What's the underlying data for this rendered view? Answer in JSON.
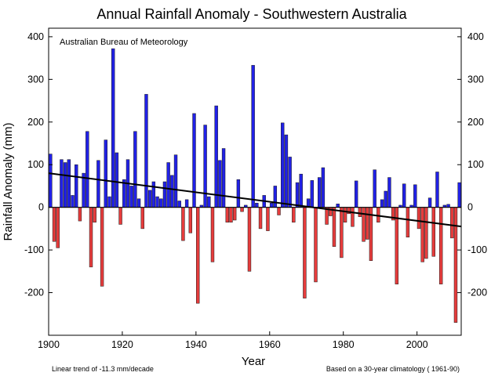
{
  "chart_data": {
    "type": "bar",
    "title": "Annual Rainfall Anomaly - Southwestern Australia",
    "source_label": "Australian Bureau of Meteorology",
    "xlabel": "Year",
    "ylabel": "Rainfall Anomaly (mm)",
    "xlim": [
      1900,
      2012
    ],
    "ylim": [
      -300,
      420
    ],
    "x_ticks": [
      1900,
      1920,
      1940,
      1960,
      1980,
      2000
    ],
    "y_ticks": [
      -200,
      -100,
      0,
      100,
      200,
      300,
      400
    ],
    "years_start": 1900,
    "values": [
      125,
      -80,
      -95,
      112,
      105,
      112,
      28,
      100,
      -32,
      80,
      178,
      -140,
      -35,
      110,
      -185,
      158,
      25,
      372,
      128,
      -40,
      65,
      112,
      50,
      178,
      20,
      -50,
      265,
      40,
      60,
      25,
      20,
      60,
      105,
      75,
      123,
      15,
      -78,
      18,
      -60,
      220,
      -225,
      5,
      193,
      25,
      -128,
      238,
      110,
      138,
      -35,
      -35,
      -30,
      65,
      -10,
      5,
      -150,
      333,
      10,
      -50,
      28,
      -55,
      10,
      50,
      -18,
      198,
      170,
      118,
      -35,
      58,
      78,
      -213,
      20,
      63,
      -175,
      70,
      93,
      -40,
      -20,
      -92,
      8,
      -118,
      -35,
      -15,
      -45,
      62,
      -22,
      -80,
      -75,
      -125,
      88,
      -35,
      18,
      38,
      70,
      -30,
      -180,
      5,
      55,
      -70,
      5,
      53,
      -50,
      -128,
      -120,
      22,
      -115,
      83,
      -180,
      5,
      7,
      -72,
      -270,
      58
    ],
    "trend": {
      "start_year": 1900,
      "start_value": 80,
      "end_year": 2012,
      "end_value": -45
    },
    "trend_label": "Linear  trend of -11.3 mm/decade",
    "baseline_label": "Based on a 30-year climatology ( 1961-90)",
    "colors": {
      "positive": "#2121e6",
      "negative": "#e63c3c",
      "trend": "#000000"
    }
  }
}
